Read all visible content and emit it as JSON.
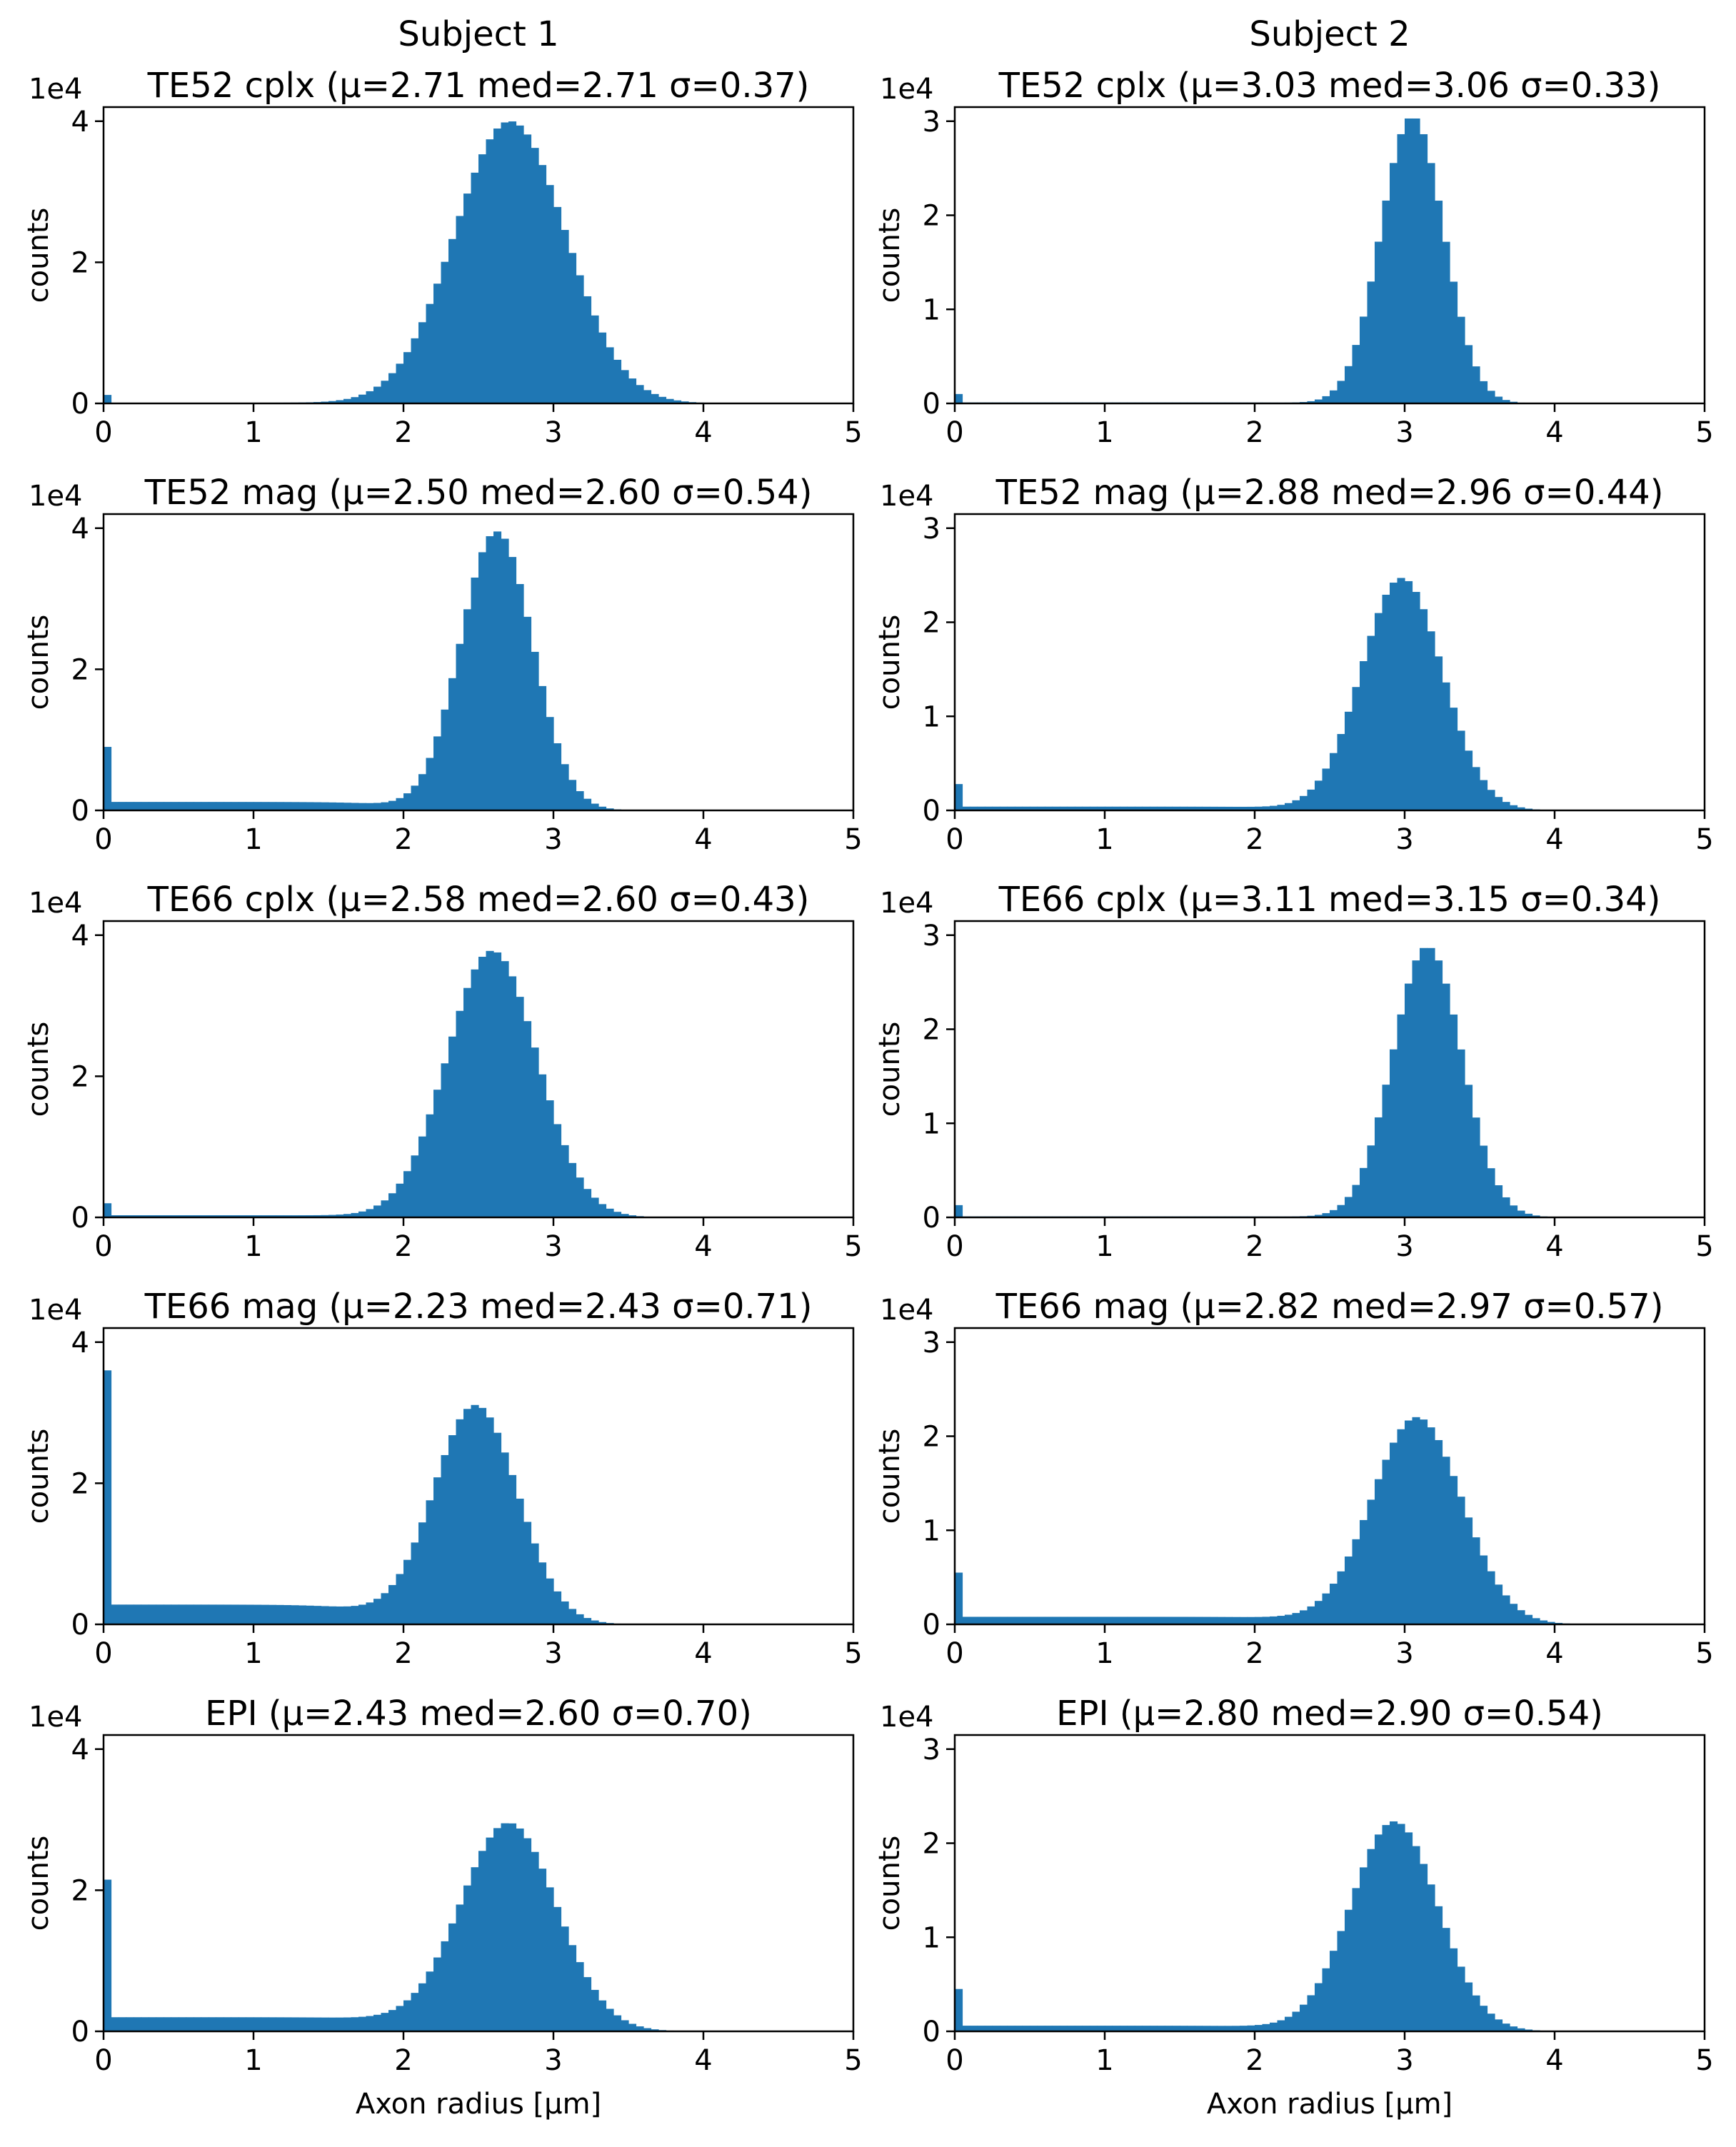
{
  "figure": {
    "column_titles": [
      "Subject 1",
      "Subject 2"
    ],
    "bar_color": "#1f77b4"
  },
  "chart_data": [
    {
      "type": "bar",
      "subject": "Subject 1",
      "title": "TE52 cplx (μ=2.71 med=2.71 σ=0.37)",
      "xlabel": "",
      "ylabel": "counts",
      "y_scale_label": "1e4",
      "xlim": [
        0,
        5
      ],
      "ylim": [
        0,
        4.2
      ],
      "xticks": [
        "0",
        "1",
        "2",
        "3",
        "4",
        "5"
      ],
      "yticks": [
        "0",
        "2",
        "4"
      ],
      "dist": {
        "mu": 2.71,
        "sigma": 0.37,
        "peak": 4.0,
        "spike": 0.12,
        "floor": 0.01
      }
    },
    {
      "type": "bar",
      "subject": "Subject 2",
      "title": "TE52 cplx (μ=3.03 med=3.06 σ=0.33)",
      "xlabel": "",
      "ylabel": "counts",
      "y_scale_label": "1e4",
      "xlim": [
        0,
        5
      ],
      "ylim": [
        0,
        3.15
      ],
      "xticks": [
        "0",
        "1",
        "2",
        "3",
        "4",
        "5"
      ],
      "yticks": [
        "0",
        "1",
        "2",
        "3"
      ],
      "dist": {
        "mu": 3.05,
        "sigma": 0.21,
        "peak": 3.05,
        "spike": 0.1,
        "floor": 0.01
      }
    },
    {
      "type": "bar",
      "subject": "Subject 1",
      "title": "TE52 mag (μ=2.50 med=2.60 σ=0.54)",
      "xlabel": "",
      "ylabel": "counts",
      "y_scale_label": "1e4",
      "xlim": [
        0,
        5
      ],
      "ylim": [
        0,
        4.2
      ],
      "xticks": [
        "0",
        "1",
        "2",
        "3",
        "4",
        "5"
      ],
      "yticks": [
        "0",
        "2",
        "4"
      ],
      "dist": {
        "mu": 2.62,
        "sigma": 0.24,
        "peak": 3.95,
        "spike": 0.9,
        "floor": 0.12
      }
    },
    {
      "type": "bar",
      "subject": "Subject 2",
      "title": "TE52 mag (μ=2.88 med=2.96 σ=0.44)",
      "xlabel": "",
      "ylabel": "counts",
      "y_scale_label": "1e4",
      "xlim": [
        0,
        5
      ],
      "ylim": [
        0,
        3.15
      ],
      "xticks": [
        "0",
        "1",
        "2",
        "3",
        "4",
        "5"
      ],
      "yticks": [
        "0",
        "1",
        "2",
        "3"
      ],
      "dist": {
        "mu": 2.98,
        "sigma": 0.27,
        "peak": 2.47,
        "spike": 0.28,
        "floor": 0.04
      }
    },
    {
      "type": "bar",
      "subject": "Subject 1",
      "title": "TE66 cplx (μ=2.58 med=2.60 σ=0.43)",
      "xlabel": "",
      "ylabel": "counts",
      "y_scale_label": "1e4",
      "xlim": [
        0,
        5
      ],
      "ylim": [
        0,
        4.2
      ],
      "xticks": [
        "0",
        "1",
        "2",
        "3",
        "4",
        "5"
      ],
      "yticks": [
        "0",
        "2",
        "4"
      ],
      "dist": {
        "mu": 2.59,
        "sigma": 0.3,
        "peak": 3.78,
        "spike": 0.2,
        "floor": 0.03
      }
    },
    {
      "type": "bar",
      "subject": "Subject 2",
      "title": "TE66 cplx (μ=3.11 med=3.15 σ=0.34)",
      "xlabel": "",
      "ylabel": "counts",
      "y_scale_label": "1e4",
      "xlim": [
        0,
        5
      ],
      "ylim": [
        0,
        3.15
      ],
      "xticks": [
        "0",
        "1",
        "2",
        "3",
        "4",
        "5"
      ],
      "yticks": [
        "0",
        "1",
        "2",
        "3"
      ],
      "dist": {
        "mu": 3.15,
        "sigma": 0.23,
        "peak": 2.88,
        "spike": 0.13,
        "floor": 0.01
      }
    },
    {
      "type": "bar",
      "subject": "Subject 1",
      "title": "TE66 mag (μ=2.23 med=2.43 σ=0.71)",
      "xlabel": "",
      "ylabel": "counts",
      "y_scale_label": "1e4",
      "xlim": [
        0,
        5
      ],
      "ylim": [
        0,
        4.2
      ],
      "xticks": [
        "0",
        "1",
        "2",
        "3",
        "4",
        "5"
      ],
      "yticks": [
        "0",
        "2",
        "4"
      ],
      "dist": {
        "mu": 2.48,
        "sigma": 0.28,
        "peak": 3.1,
        "spike": 3.6,
        "floor": 0.28
      }
    },
    {
      "type": "bar",
      "subject": "Subject 2",
      "title": "TE66 mag (μ=2.82 med=2.97 σ=0.57)",
      "xlabel": "",
      "ylabel": "counts",
      "y_scale_label": "1e4",
      "xlim": [
        0,
        5
      ],
      "ylim": [
        0,
        3.15
      ],
      "xticks": [
        "0",
        "1",
        "2",
        "3",
        "4",
        "5"
      ],
      "yticks": [
        "0",
        "1",
        "2",
        "3"
      ],
      "dist": {
        "mu": 3.08,
        "sigma": 0.3,
        "peak": 2.2,
        "spike": 0.55,
        "floor": 0.08
      }
    },
    {
      "type": "bar",
      "subject": "Subject 1",
      "title": "EPI (μ=2.43 med=2.60 σ=0.70)",
      "xlabel": "Axon radius [μm]",
      "ylabel": "counts",
      "y_scale_label": "1e4",
      "xlim": [
        0,
        5
      ],
      "ylim": [
        0,
        4.2
      ],
      "xticks": [
        "0",
        "1",
        "2",
        "3",
        "4",
        "5"
      ],
      "yticks": [
        "0",
        "2",
        "4"
      ],
      "dist": {
        "mu": 2.7,
        "sigma": 0.32,
        "peak": 2.95,
        "spike": 2.15,
        "floor": 0.2
      }
    },
    {
      "type": "bar",
      "subject": "Subject 2",
      "title": "EPI (μ=2.80 med=2.90 σ=0.54)",
      "xlabel": "Axon radius [μm]",
      "ylabel": "counts",
      "y_scale_label": "1e4",
      "xlim": [
        0,
        5
      ],
      "ylim": [
        0,
        3.15
      ],
      "xticks": [
        "0",
        "1",
        "2",
        "3",
        "4",
        "5"
      ],
      "yticks": [
        "0",
        "1",
        "2",
        "3"
      ],
      "dist": {
        "mu": 2.93,
        "sigma": 0.29,
        "peak": 2.23,
        "spike": 0.45,
        "floor": 0.06
      }
    }
  ]
}
